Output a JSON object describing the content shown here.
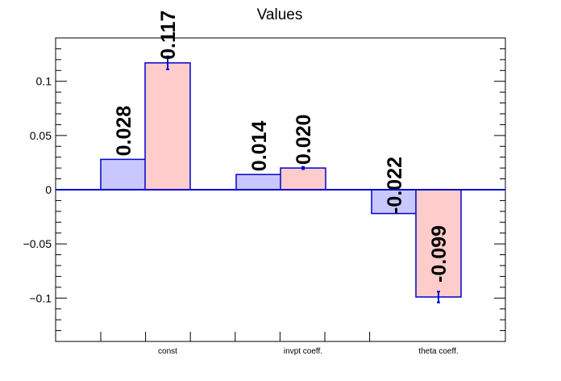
{
  "chart_data": {
    "type": "bar",
    "title": "Values",
    "categories": [
      "const",
      "invpt coeff.",
      "theta coeff."
    ],
    "series": [
      {
        "color": "#c8c8ff",
        "values": [
          0.028,
          0.014,
          -0.022
        ],
        "errors": [
          0,
          0,
          0
        ],
        "labels": [
          "0.028",
          "0.014",
          "-0.022"
        ]
      },
      {
        "color": "#ffcccc",
        "values": [
          0.117,
          0.02,
          -0.099
        ],
        "errors": [
          0.006,
          0.001,
          0.005
        ],
        "labels": [
          "0.117",
          "0.020",
          "-0.099"
        ]
      }
    ],
    "edge_color": "#0000cc",
    "ylim": [
      -0.14,
      0.14
    ],
    "yticks": [
      -0.1,
      -0.05,
      0,
      0.05,
      0.1
    ],
    "ytick_labels": [
      "−0.1",
      "−0.05",
      "0",
      "0.05",
      "0.1"
    ],
    "grid": false,
    "legend": "none"
  }
}
